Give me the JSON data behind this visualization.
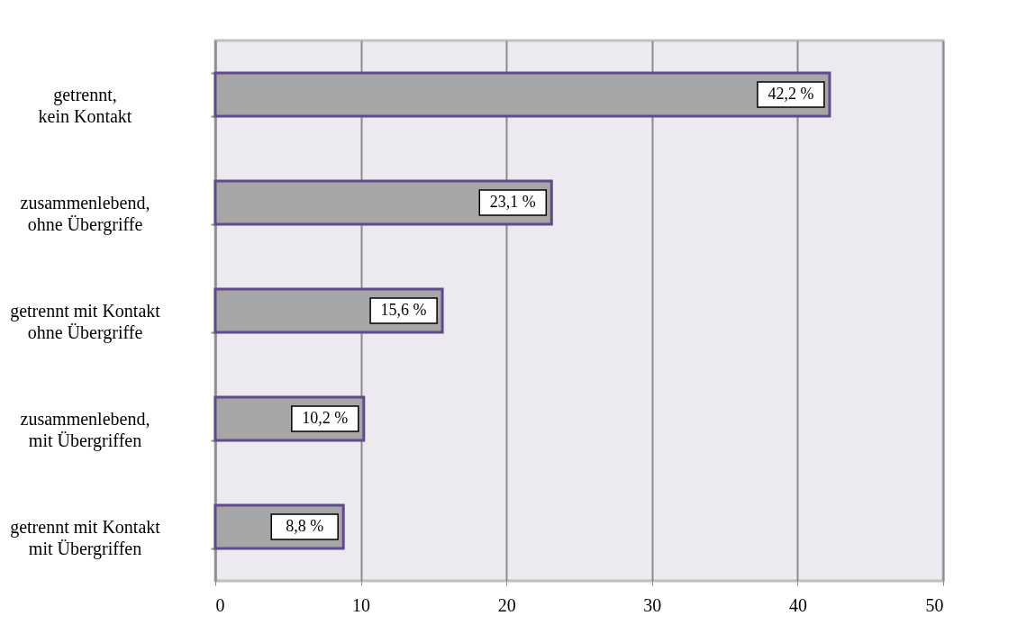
{
  "chart_data": {
    "type": "bar",
    "orientation": "horizontal",
    "categories": [
      "getrennt,\nkein Kontakt",
      "zusammenlebend,\nohne Übergriffe",
      "getrennt mit Kontakt\nohne Übergriffe",
      "zusammenlebend,\nmit Übergriffen",
      "getrennt mit Kontakt\nmit Übergriffen"
    ],
    "values": [
      42.2,
      23.1,
      15.6,
      10.2,
      8.8
    ],
    "value_labels": [
      "42,2 %",
      "23,1 %",
      "15,6 %",
      "10,2 %",
      "8,8 %"
    ],
    "color": "#a6a6a6",
    "xlim": [
      0,
      50
    ],
    "xticks": [
      0,
      10,
      20,
      30,
      40,
      50
    ],
    "grid": "x"
  }
}
